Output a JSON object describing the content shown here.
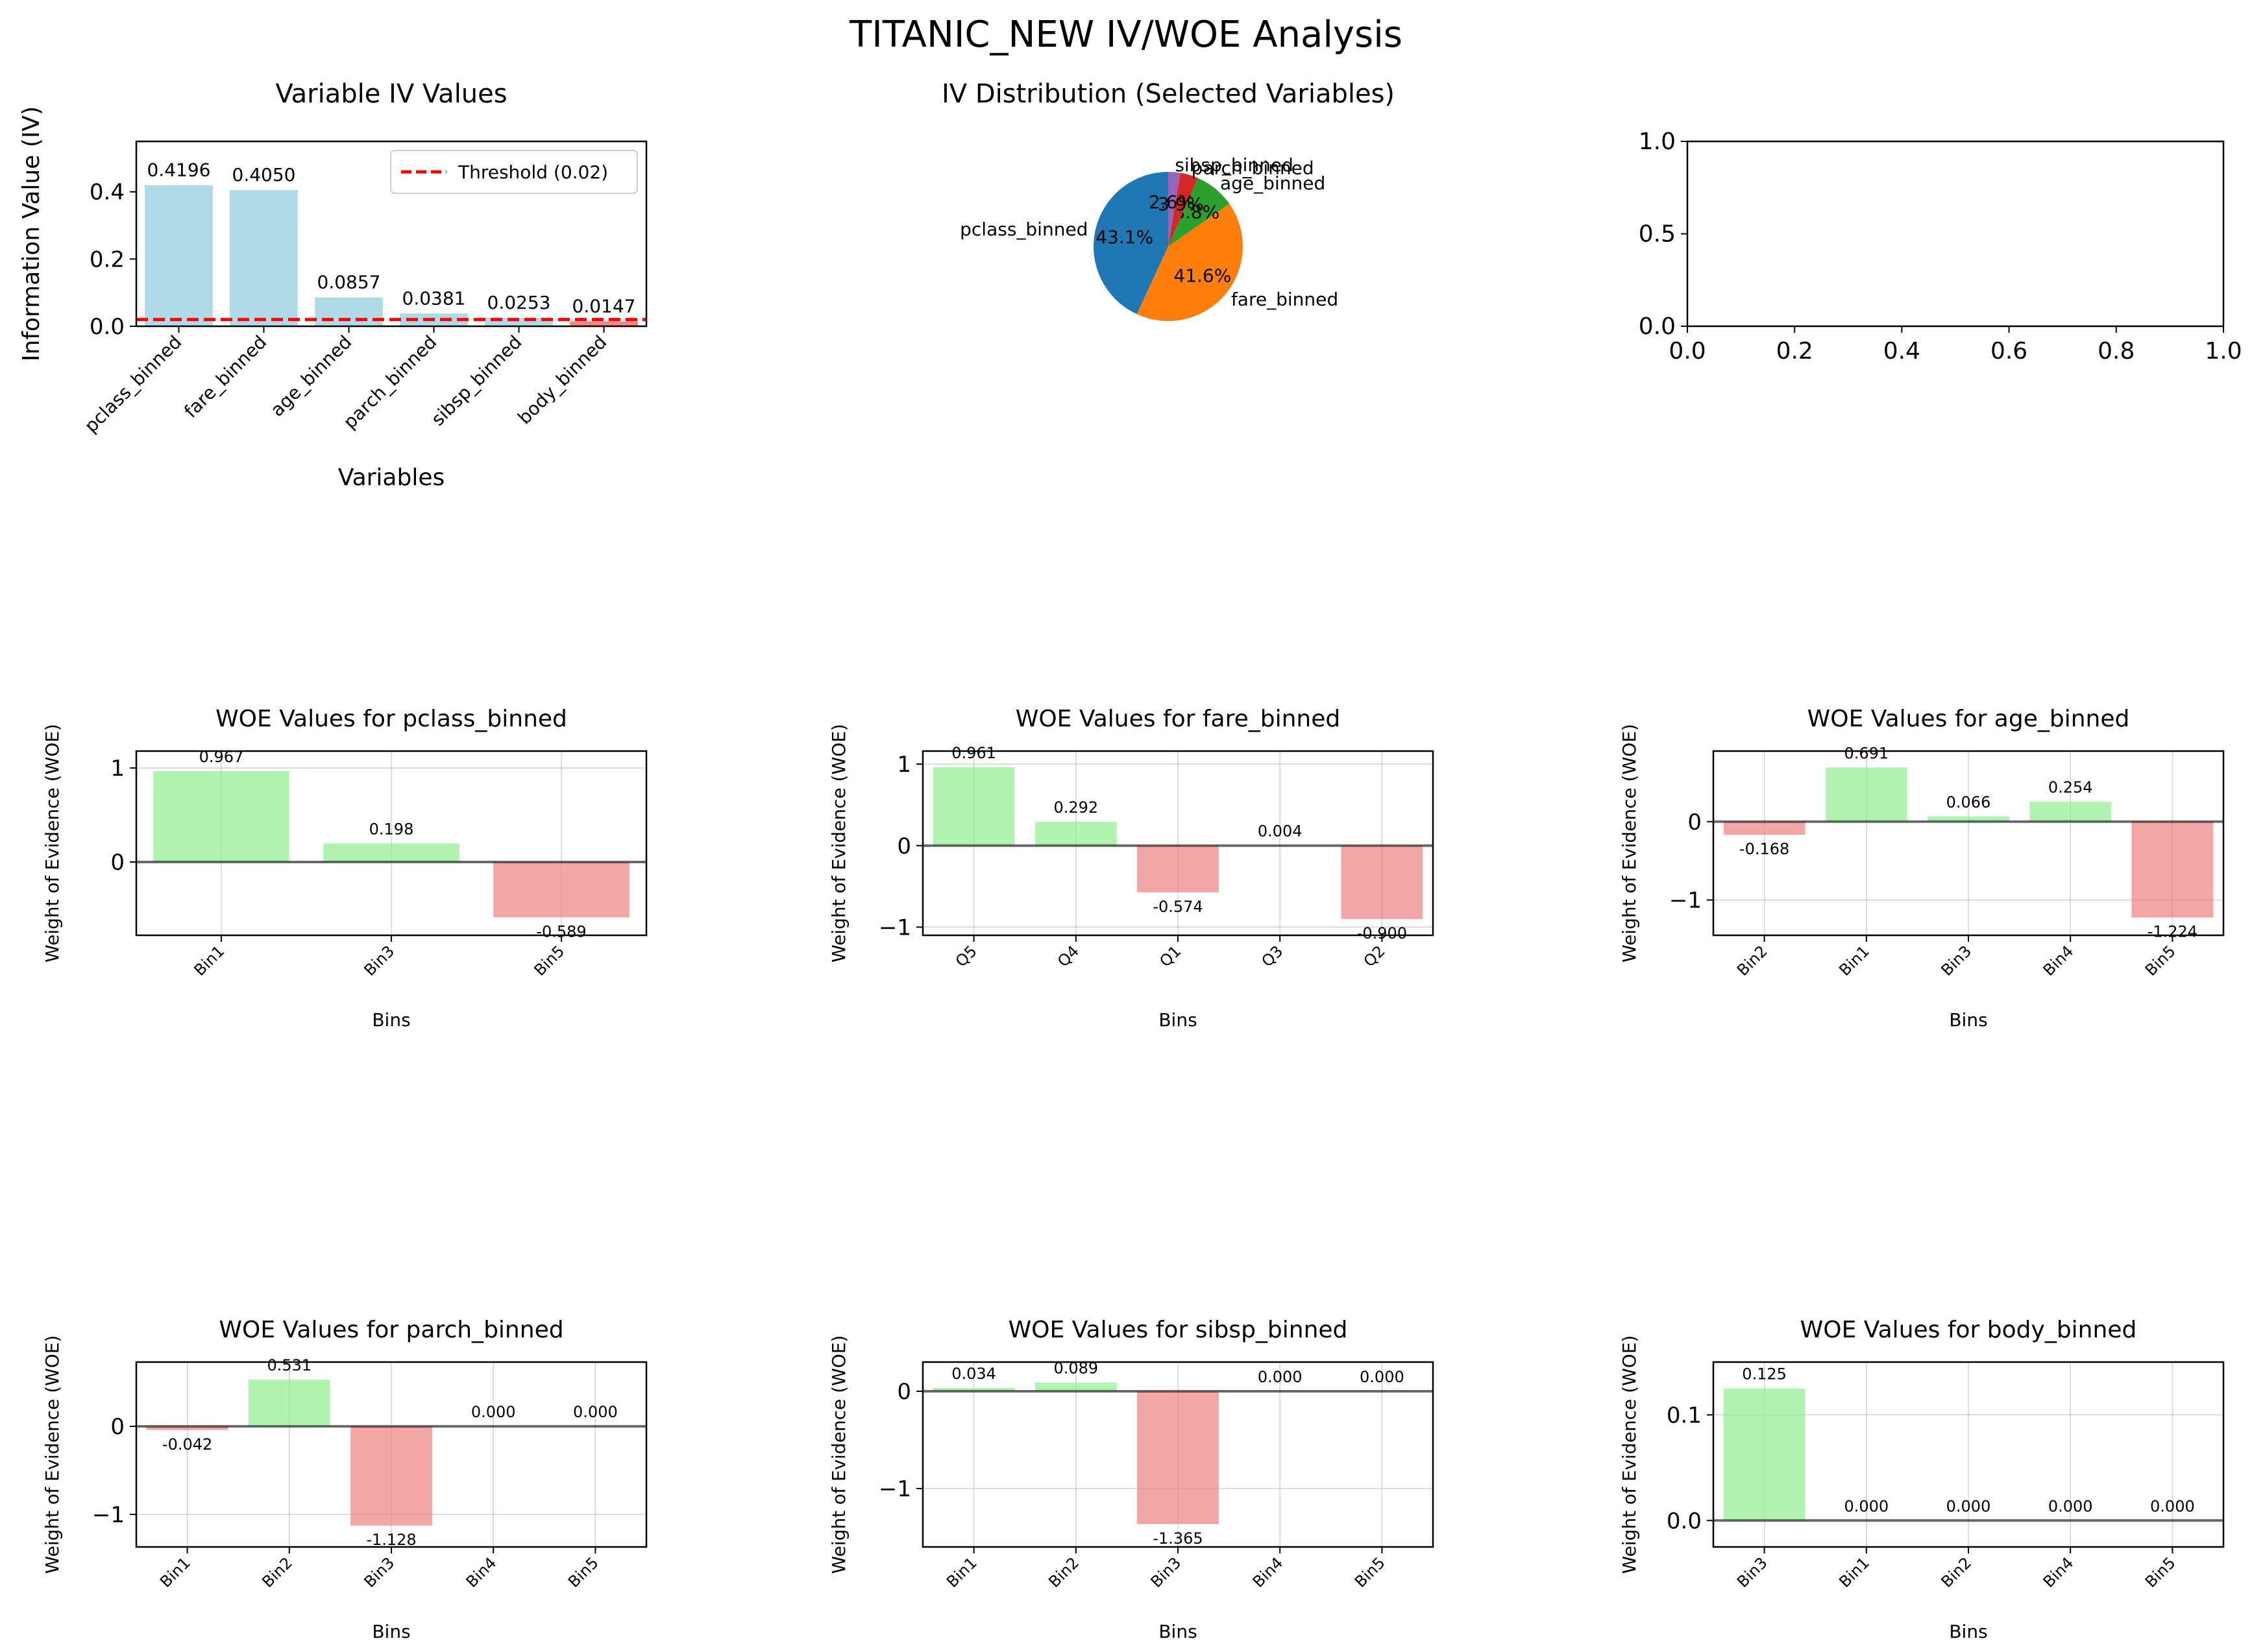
{
  "figure_title": "TITANIC_NEW IV/WOE Analysis",
  "colors": {
    "iv_bar": "#add8e6",
    "positive": "#90ee90",
    "negative": "#f08080",
    "threshold": "#ff0000",
    "zero_line": "#000000",
    "grid": "#b0b0b0"
  },
  "chart_data": [
    {
      "type": "bar",
      "title": "Variable IV Values",
      "xlabel": "Variables",
      "ylabel": "Information Value (IV)",
      "categories": [
        "pclass_binned",
        "fare_binned",
        "age_binned",
        "parch_binned",
        "sibsp_binned",
        "body_binned"
      ],
      "values": [
        0.4196,
        0.405,
        0.0857,
        0.0381,
        0.0253,
        0.0147
      ],
      "value_labels": [
        "0.4196",
        "0.4050",
        "0.0857",
        "0.0381",
        "0.0253",
        "0.0147"
      ],
      "ylim": [
        0,
        0.55
      ],
      "yticks": [
        0,
        0.2,
        0.4
      ],
      "ytick_labels": [
        "0.0",
        "0.2",
        "0.4"
      ],
      "threshold": 0.02,
      "legend": {
        "label": "Threshold (0.02)",
        "position": "top-right"
      },
      "grid": false
    },
    {
      "type": "pie",
      "title": "IV Distribution (Selected Variables)",
      "labels": [
        "pclass_binned",
        "fare_binned",
        "age_binned",
        "parch_binned",
        "sibsp_binned"
      ],
      "values": [
        43.1,
        41.6,
        8.8,
        3.9,
        2.6
      ],
      "pct_labels": [
        "43.1%",
        "41.6%",
        "8.8%",
        "3.9%",
        "2.6%"
      ],
      "colors": [
        "#1f77b4",
        "#ff7f0e",
        "#2ca02c",
        "#d62728",
        "#9467bd"
      ],
      "start_angle_deg": 90
    },
    {
      "type": "empty",
      "xlim": [
        0,
        1
      ],
      "ylim": [
        0,
        1
      ],
      "xtick_labels": [
        "0.0",
        "0.2",
        "0.4",
        "0.6",
        "0.8",
        "1.0"
      ],
      "ytick_labels": [
        "0.0",
        "0.5",
        "1.0"
      ]
    },
    {
      "type": "bar",
      "title": "WOE Values for pclass_binned",
      "xlabel": "Bins",
      "ylabel": "Weight of Evidence (WOE)",
      "categories": [
        "Bin1",
        "Bin3",
        "Bin5"
      ],
      "values": [
        0.967,
        0.198,
        -0.589
      ],
      "value_labels": [
        "0.967",
        "0.198",
        "-0.589"
      ],
      "ylim": [
        -0.78,
        1.18
      ],
      "yticks": [
        0,
        1
      ],
      "ytick_labels": [
        "0",
        "1"
      ],
      "grid": true
    },
    {
      "type": "bar",
      "title": "WOE Values for fare_binned",
      "xlabel": "Bins",
      "ylabel": "Weight of Evidence (WOE)",
      "categories": [
        "Q5",
        "Q4",
        "Q1",
        "Q3",
        "Q2"
      ],
      "values": [
        0.961,
        0.292,
        -0.574,
        0.004,
        -0.9
      ],
      "value_labels": [
        "0.961",
        "0.292",
        "-0.574",
        "0.004",
        "-0.900"
      ],
      "ylim": [
        -1.1,
        1.16
      ],
      "yticks": [
        -1,
        0,
        1
      ],
      "ytick_labels": [
        "−1",
        "0",
        "1"
      ],
      "grid": true
    },
    {
      "type": "bar",
      "title": "WOE Values for age_binned",
      "xlabel": "Bins",
      "ylabel": "Weight of Evidence (WOE)",
      "categories": [
        "Bin2",
        "Bin1",
        "Bin3",
        "Bin4",
        "Bin5"
      ],
      "values": [
        -0.168,
        0.691,
        0.066,
        0.254,
        -1.224
      ],
      "value_labels": [
        "-0.168",
        "0.691",
        "0.066",
        "0.254",
        "-1.224"
      ],
      "ylim": [
        -1.45,
        0.9
      ],
      "yticks": [
        -1,
        0
      ],
      "ytick_labels": [
        "−1",
        "0"
      ],
      "grid": true
    },
    {
      "type": "bar",
      "title": "WOE Values for parch_binned",
      "xlabel": "Bins",
      "ylabel": "Weight of Evidence (WOE)",
      "categories": [
        "Bin1",
        "Bin2",
        "Bin3",
        "Bin4",
        "Bin5"
      ],
      "values": [
        -0.042,
        0.531,
        -1.128,
        0.0,
        0.0
      ],
      "value_labels": [
        "-0.042",
        "0.531",
        "-1.128",
        "0.000",
        "0.000"
      ],
      "ylim": [
        -1.37,
        0.73
      ],
      "yticks": [
        -1,
        0
      ],
      "ytick_labels": [
        "−1",
        "0"
      ],
      "grid": true
    },
    {
      "type": "bar",
      "title": "WOE Values for sibsp_binned",
      "xlabel": "Bins",
      "ylabel": "Weight of Evidence (WOE)",
      "categories": [
        "Bin1",
        "Bin2",
        "Bin3",
        "Bin4",
        "Bin5"
      ],
      "values": [
        0.034,
        0.089,
        -1.365,
        0.0,
        0.0
      ],
      "value_labels": [
        "0.034",
        "0.089",
        "-1.365",
        "0.000",
        "0.000"
      ],
      "ylim": [
        -1.6,
        0.3
      ],
      "yticks": [
        -1,
        0
      ],
      "ytick_labels": [
        "−1",
        "0"
      ],
      "grid": true
    },
    {
      "type": "bar",
      "title": "WOE Values for body_binned",
      "xlabel": "Bins",
      "ylabel": "Weight of Evidence (WOE)",
      "categories": [
        "Bin3",
        "Bin1",
        "Bin2",
        "Bin4",
        "Bin5"
      ],
      "values": [
        0.125,
        0.0,
        0.0,
        0.0,
        0.0
      ],
      "value_labels": [
        "0.125",
        "0.000",
        "0.000",
        "0.000",
        "0.000"
      ],
      "ylim": [
        -0.025,
        0.15
      ],
      "yticks": [
        0,
        0.1
      ],
      "ytick_labels": [
        "0.0",
        "0.1"
      ],
      "grid": true
    }
  ]
}
